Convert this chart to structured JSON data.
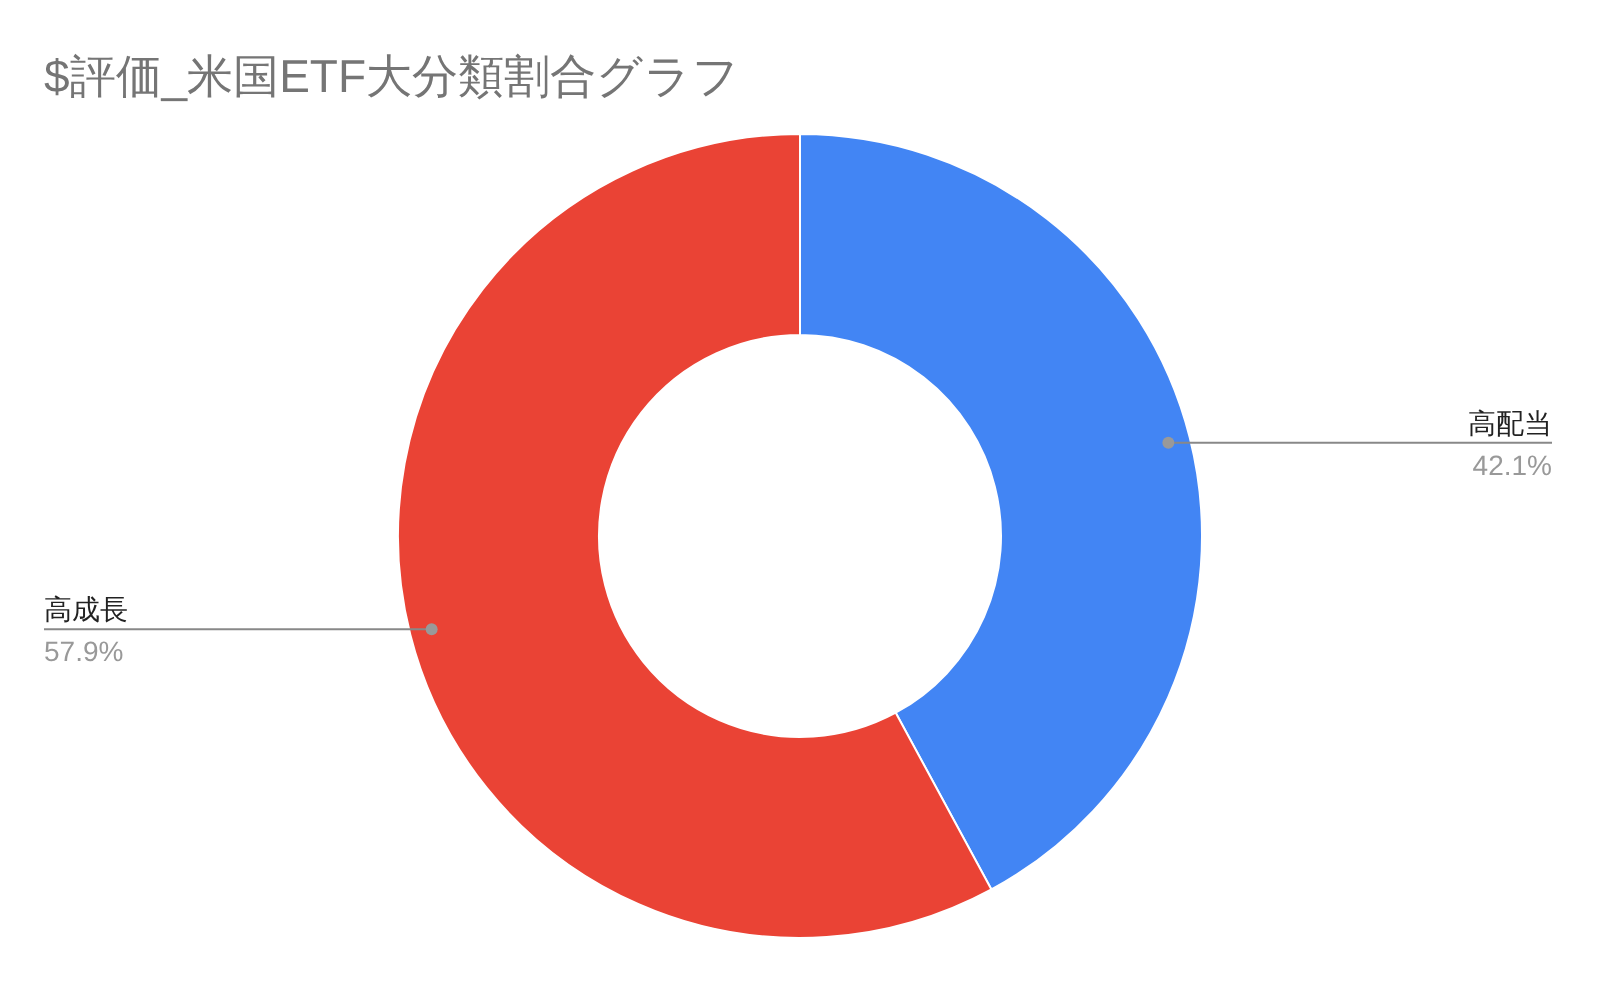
{
  "chart_data": {
    "type": "donut",
    "title": "$評価_米国ETF大分類割合グラフ",
    "categories": [
      "高配当",
      "高成長"
    ],
    "values": [
      42.1,
      57.9
    ],
    "colors": [
      "#4285f4",
      "#ea4335"
    ],
    "value_labels": [
      "42.1%",
      "57.9%"
    ],
    "legend": false
  }
}
